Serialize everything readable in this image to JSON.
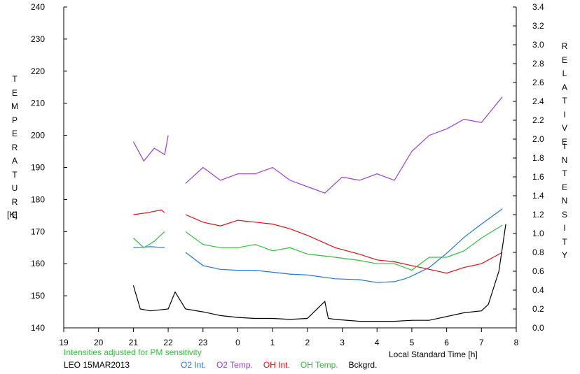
{
  "chart_data": {
    "type": "line",
    "title": "",
    "xlabel": "Local Standard Time [h]",
    "ylabel_left": "TEMPERATURE",
    "ylabel_left_unit": "[K]",
    "ylabel_right": "RELATIVE INTENSITY",
    "x_ticks": [
      "19",
      "20",
      "21",
      "22",
      "23",
      "0",
      "1",
      "2",
      "3",
      "4",
      "5",
      "6",
      "7",
      "8"
    ],
    "xlim": [
      19,
      32
    ],
    "left_ylim": [
      140,
      240
    ],
    "left_ticks": [
      "140",
      "150",
      "160",
      "170",
      "180",
      "190",
      "200",
      "210",
      "220",
      "230",
      "240"
    ],
    "right_ylim": [
      0.0,
      3.4
    ],
    "right_ticks": [
      "0.0",
      "0.2",
      "0.4",
      "0.6",
      "0.8",
      "1.0",
      "1.2",
      "1.4",
      "1.6",
      "1.8",
      "2.0",
      "2.2",
      "2.4",
      "2.6",
      "2.8",
      "3.0",
      "3.2",
      "3.4"
    ],
    "grid": false,
    "note": "Intensities adjusted for PM sensitivity",
    "station": "LEO 15MAR2013",
    "series": [
      {
        "name": "O2 Int.",
        "axis": "right",
        "color": "#1f78d8",
        "x": [
          21.0,
          21.5,
          21.9,
          22.2,
          22.5,
          23.0,
          23.5,
          24.0,
          24.5,
          25.0,
          25.5,
          26.0,
          26.8,
          27.5,
          28.0,
          28.5,
          28.8,
          29.0,
          29.5,
          30.0,
          30.5,
          31.0,
          31.6
        ],
        "values": [
          0.85,
          0.86,
          0.85,
          null,
          0.8,
          0.66,
          0.62,
          0.61,
          0.61,
          0.59,
          0.57,
          0.56,
          0.52,
          0.51,
          0.48,
          0.49,
          0.52,
          0.55,
          0.64,
          0.79,
          0.96,
          1.1,
          1.26
        ]
      },
      {
        "name": "O2 Temp.",
        "axis": "left",
        "color": "#9b3dd6",
        "x": [
          21.0,
          21.3,
          21.6,
          21.9,
          22.0,
          22.2,
          22.5,
          23.0,
          23.5,
          24.0,
          24.5,
          25.0,
          25.5,
          26.0,
          26.5,
          27.0,
          27.5,
          28.0,
          28.5,
          29.0,
          29.5,
          30.0,
          30.5,
          31.0,
          31.6
        ],
        "values": [
          198,
          192,
          196,
          194,
          200,
          null,
          185,
          190,
          186,
          188,
          188,
          190,
          186,
          184,
          182,
          187,
          186,
          188,
          186,
          195,
          200,
          202,
          205,
          204,
          212
        ]
      },
      {
        "name": "OH Int.",
        "axis": "right",
        "color": "#e01010",
        "x": [
          21.0,
          21.4,
          21.8,
          21.9,
          22.2,
          22.5,
          23.0,
          23.5,
          24.0,
          24.5,
          25.0,
          25.5,
          26.0,
          26.8,
          27.5,
          28.0,
          28.5,
          29.0,
          29.5,
          30.0,
          30.5,
          31.0,
          31.6
        ],
        "values": [
          1.2,
          1.22,
          1.25,
          1.22,
          null,
          1.2,
          1.12,
          1.08,
          1.14,
          1.12,
          1.1,
          1.05,
          0.98,
          0.85,
          0.78,
          0.72,
          0.7,
          0.66,
          0.62,
          0.58,
          0.64,
          0.68,
          0.8
        ]
      },
      {
        "name": "OH Temp.",
        "axis": "left",
        "color": "#2ec13a",
        "x": [
          21.0,
          21.3,
          21.6,
          21.9,
          22.2,
          22.5,
          23.0,
          23.5,
          24.0,
          24.5,
          25.0,
          25.5,
          26.0,
          26.8,
          27.5,
          28.0,
          28.5,
          29.0,
          29.5,
          30.0,
          30.5,
          31.0,
          31.6
        ],
        "values": [
          168,
          165,
          167,
          170,
          null,
          170,
          166,
          165,
          165,
          166,
          164,
          165,
          163,
          162,
          161,
          160,
          160,
          158,
          162,
          162,
          164,
          168,
          172
        ]
      },
      {
        "name": "Bckgrd.",
        "axis": "right",
        "color": "#000000",
        "x": [
          21.0,
          21.2,
          21.5,
          22.0,
          22.2,
          22.5,
          23.0,
          23.5,
          24.0,
          24.5,
          25.0,
          25.5,
          26.0,
          26.5,
          26.6,
          26.8,
          27.5,
          28.0,
          28.5,
          29.0,
          29.5,
          30.0,
          30.5,
          31.0,
          31.2,
          31.5,
          31.7
        ],
        "values": [
          0.45,
          0.2,
          0.18,
          0.2,
          0.38,
          0.2,
          0.17,
          0.13,
          0.11,
          0.1,
          0.1,
          0.09,
          0.1,
          0.28,
          0.1,
          0.09,
          0.07,
          0.07,
          0.07,
          0.08,
          0.08,
          0.12,
          0.16,
          0.18,
          0.25,
          0.6,
          1.1
        ]
      }
    ]
  },
  "labels": {
    "left_vertical_letters": [
      "T",
      "E",
      "M",
      "P",
      "E",
      "R",
      "A",
      "T",
      "U",
      "R",
      "E"
    ],
    "left_unit": "[K]",
    "right_vertical_letters_1": [
      "R",
      "E",
      "L",
      "A",
      "T",
      "I",
      "V",
      "E"
    ],
    "right_vertical_letters_2": [
      "I",
      "N",
      "T",
      "E",
      "N",
      "S",
      "I",
      "T",
      "Y"
    ]
  },
  "colors": {
    "note": "#2ec13a",
    "axis": "#000000",
    "background": "#ffffff"
  }
}
